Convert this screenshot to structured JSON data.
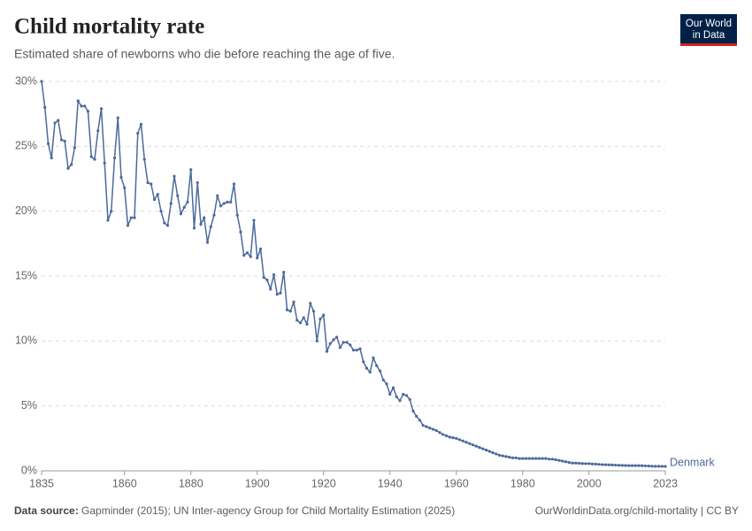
{
  "header": {
    "logo": [
      "Our World",
      "in Data"
    ]
  },
  "footer": {
    "source_label": "Data source:",
    "source": "Gapminder (2015); UN Inter-agency Group for Child Mortality Estimation (2025)",
    "link": "OurWorldinData.org/child-mortality | CC BY"
  },
  "chart_data": {
    "type": "line",
    "title": "Child mortality rate",
    "subtitle": "Estimated share of newborns who die before reaching the age of five.",
    "x": [
      1835,
      1836,
      1837,
      1838,
      1839,
      1840,
      1841,
      1842,
      1843,
      1844,
      1845,
      1846,
      1847,
      1848,
      1849,
      1850,
      1851,
      1852,
      1853,
      1854,
      1855,
      1856,
      1857,
      1858,
      1859,
      1860,
      1861,
      1862,
      1863,
      1864,
      1865,
      1866,
      1867,
      1868,
      1869,
      1870,
      1871,
      1872,
      1873,
      1874,
      1875,
      1876,
      1877,
      1878,
      1879,
      1880,
      1881,
      1882,
      1883,
      1884,
      1885,
      1886,
      1887,
      1888,
      1889,
      1890,
      1891,
      1892,
      1893,
      1894,
      1895,
      1896,
      1897,
      1898,
      1899,
      1900,
      1901,
      1902,
      1903,
      1904,
      1905,
      1906,
      1907,
      1908,
      1909,
      1910,
      1911,
      1912,
      1913,
      1914,
      1915,
      1916,
      1917,
      1918,
      1919,
      1920,
      1921,
      1922,
      1923,
      1924,
      1925,
      1926,
      1927,
      1928,
      1929,
      1930,
      1931,
      1932,
      1933,
      1934,
      1935,
      1936,
      1937,
      1938,
      1939,
      1940,
      1941,
      1942,
      1943,
      1944,
      1945,
      1946,
      1947,
      1948,
      1949,
      1950,
      1951,
      1952,
      1953,
      1954,
      1955,
      1956,
      1957,
      1958,
      1959,
      1960,
      1961,
      1962,
      1963,
      1964,
      1965,
      1966,
      1967,
      1968,
      1969,
      1970,
      1971,
      1972,
      1973,
      1974,
      1975,
      1976,
      1977,
      1978,
      1979,
      1980,
      1981,
      1982,
      1983,
      1984,
      1985,
      1986,
      1987,
      1988,
      1989,
      1990,
      1991,
      1992,
      1993,
      1994,
      1995,
      1996,
      1997,
      1998,
      1999,
      2000,
      2001,
      2002,
      2003,
      2004,
      2005,
      2006,
      2007,
      2008,
      2009,
      2010,
      2011,
      2012,
      2013,
      2014,
      2015,
      2016,
      2017,
      2018,
      2019,
      2020,
      2021,
      2022,
      2023
    ],
    "series": [
      {
        "name": "Denmark",
        "color": "#4c6a9c",
        "values": [
          30,
          28,
          25.2,
          24.1,
          26.8,
          27,
          25.5,
          25.4,
          23.3,
          23.6,
          24.9,
          28.5,
          28.1,
          28.1,
          27.7,
          24.2,
          24,
          26.2,
          27.9,
          23.7,
          19.3,
          20,
          24.1,
          27.2,
          22.6,
          21.8,
          18.9,
          19.5,
          19.5,
          26,
          26.7,
          24,
          22.2,
          22.1,
          20.9,
          21.3,
          20,
          19.1,
          18.9,
          20.6,
          22.7,
          21.2,
          19.8,
          20.3,
          20.7,
          23.2,
          18.7,
          22.2,
          19,
          19.5,
          17.6,
          18.8,
          19.7,
          21.2,
          20.4,
          20.6,
          20.7,
          20.7,
          22.1,
          19.7,
          18.4,
          16.6,
          16.8,
          16.5,
          19.3,
          16.4,
          17.1,
          14.9,
          14.7,
          14,
          15.1,
          13.6,
          13.7,
          15.3,
          12.4,
          12.3,
          13,
          11.6,
          11.4,
          11.8,
          11.3,
          12.9,
          12.3,
          10,
          11.7,
          12,
          9.2,
          9.8,
          10.1,
          10.3,
          9.5,
          9.9,
          9.9,
          9.7,
          9.3,
          9.3,
          9.4,
          8.4,
          7.9,
          7.6,
          8.7,
          8.1,
          7.7,
          7,
          6.7,
          5.9,
          6.4,
          5.7,
          5.4,
          5.9,
          5.8,
          5.5,
          4.6,
          4.2,
          3.9,
          3.5,
          3.4,
          3.3,
          3.2,
          3.1,
          2.95,
          2.8,
          2.7,
          2.6,
          2.55,
          2.5,
          2.4,
          2.3,
          2.2,
          2.1,
          2,
          1.9,
          1.8,
          1.7,
          1.6,
          1.5,
          1.4,
          1.3,
          1.2,
          1.15,
          1.1,
          1.05,
          1,
          1,
          0.95,
          0.95,
          0.95,
          0.95,
          0.95,
          0.95,
          0.95,
          0.95,
          0.95,
          0.9,
          0.9,
          0.85,
          0.8,
          0.75,
          0.7,
          0.65,
          0.6,
          0.6,
          0.58,
          0.56,
          0.55,
          0.55,
          0.53,
          0.52,
          0.5,
          0.48,
          0.47,
          0.46,
          0.45,
          0.44,
          0.43,
          0.42,
          0.41,
          0.4,
          0.4,
          0.4,
          0.4,
          0.39,
          0.38,
          0.37,
          0.36,
          0.35,
          0.35,
          0.34,
          0.34
        ]
      }
    ],
    "xlim": [
      1835,
      2023
    ],
    "xticks": [
      1835,
      1860,
      1880,
      1900,
      1920,
      1940,
      1960,
      1980,
      2000,
      2023
    ],
    "ylim": [
      0,
      30
    ],
    "yticks": [
      {
        "value": 0,
        "label": "0%"
      },
      {
        "value": 5,
        "label": "5%"
      },
      {
        "value": 10,
        "label": "10%"
      },
      {
        "value": 15,
        "label": "15%"
      },
      {
        "value": 20,
        "label": "20%"
      },
      {
        "value": 25,
        "label": "25%"
      },
      {
        "value": 30,
        "label": "30%"
      }
    ],
    "grid": true
  }
}
